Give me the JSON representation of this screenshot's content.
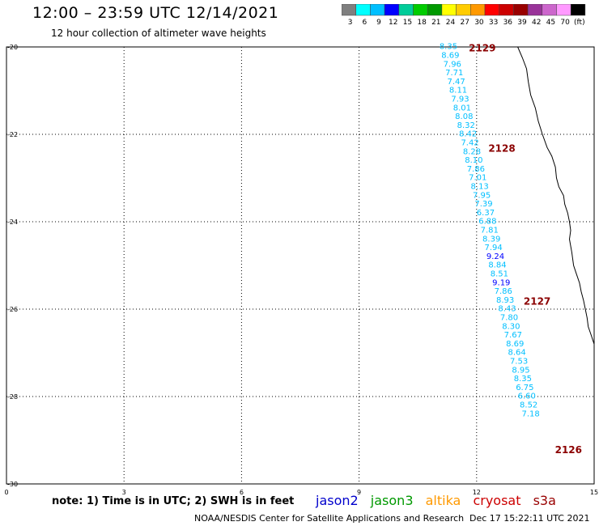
{
  "header": {
    "title": "12:00 – 23:59 UTC 12/14/2021",
    "subtitle": "12 hour collection of altimeter wave heights"
  },
  "colorbar": {
    "colors": [
      "#7f7f7f",
      "#00ffff",
      "#00bfff",
      "#0000ff",
      "#00cc99",
      "#00cc00",
      "#009900",
      "#ffff00",
      "#ffcc00",
      "#ff9900",
      "#ff0000",
      "#cc0000",
      "#990000",
      "#993399",
      "#cc66cc",
      "#ff99ff",
      "#000000"
    ],
    "labels": [
      "3",
      "6",
      "9",
      "12",
      "15",
      "18",
      "21",
      "24",
      "27",
      "30",
      "33",
      "36",
      "39",
      "42",
      "45",
      "70",
      "(ft)"
    ]
  },
  "chart_data": {
    "type": "scatter",
    "x_ticks": [
      "0",
      "3",
      "6",
      "9",
      "12",
      "15"
    ],
    "y_ticks": [
      "-20",
      "-22",
      "-24",
      "-26",
      "-28",
      "-30"
    ],
    "xlim": [
      0,
      15
    ],
    "ylim": [
      -30,
      -20
    ],
    "grid": true,
    "pass_labels": [
      {
        "label": "2129",
        "x": 11.8,
        "y": -20.1
      },
      {
        "label": "2128",
        "x": 12.3,
        "y": -22.4
      },
      {
        "label": "2127",
        "x": 13.2,
        "y": -25.9
      },
      {
        "label": "2126",
        "x": 14.0,
        "y": -29.3
      }
    ],
    "points": [
      {
        "x": 11.05,
        "y": -20.05,
        "v": "8.35",
        "c": "#00bfff"
      },
      {
        "x": 11.1,
        "y": -20.25,
        "v": "8.69",
        "c": "#00bfff"
      },
      {
        "x": 11.15,
        "y": -20.45,
        "v": "7.96",
        "c": "#00bfff"
      },
      {
        "x": 11.2,
        "y": -20.65,
        "v": "7.71",
        "c": "#00bfff"
      },
      {
        "x": 11.25,
        "y": -20.85,
        "v": "7.47",
        "c": "#00bfff"
      },
      {
        "x": 11.3,
        "y": -21.05,
        "v": "8.11",
        "c": "#00bfff"
      },
      {
        "x": 11.35,
        "y": -21.25,
        "v": "7.93",
        "c": "#00bfff"
      },
      {
        "x": 11.4,
        "y": -21.45,
        "v": "8.01",
        "c": "#00bfff"
      },
      {
        "x": 11.45,
        "y": -21.65,
        "v": "8.08",
        "c": "#00bfff"
      },
      {
        "x": 11.5,
        "y": -21.85,
        "v": "8.32",
        "c": "#00bfff"
      },
      {
        "x": 11.55,
        "y": -22.05,
        "v": "8.42",
        "c": "#00bfff"
      },
      {
        "x": 11.6,
        "y": -22.25,
        "v": "7.42",
        "c": "#00bfff"
      },
      {
        "x": 11.65,
        "y": -22.45,
        "v": "8.28",
        "c": "#00bfff"
      },
      {
        "x": 11.7,
        "y": -22.65,
        "v": "8.10",
        "c": "#00bfff"
      },
      {
        "x": 11.75,
        "y": -22.85,
        "v": "7.86",
        "c": "#00bfff"
      },
      {
        "x": 11.8,
        "y": -23.05,
        "v": "7.01",
        "c": "#00bfff"
      },
      {
        "x": 11.85,
        "y": -23.25,
        "v": "8.13",
        "c": "#00bfff"
      },
      {
        "x": 11.9,
        "y": -23.45,
        "v": "7.95",
        "c": "#00bfff"
      },
      {
        "x": 11.95,
        "y": -23.65,
        "v": "7.39",
        "c": "#00bfff"
      },
      {
        "x": 12.0,
        "y": -23.85,
        "v": "6.37",
        "c": "#00bfff"
      },
      {
        "x": 12.05,
        "y": -24.05,
        "v": "6.88",
        "c": "#00bfff"
      },
      {
        "x": 12.1,
        "y": -24.25,
        "v": "7.81",
        "c": "#00bfff"
      },
      {
        "x": 12.15,
        "y": -24.45,
        "v": "8.39",
        "c": "#00bfff"
      },
      {
        "x": 12.2,
        "y": -24.65,
        "v": "7.94",
        "c": "#00bfff"
      },
      {
        "x": 12.25,
        "y": -24.85,
        "v": "9.24",
        "c": "#0000ff"
      },
      {
        "x": 12.3,
        "y": -25.05,
        "v": "8.84",
        "c": "#00bfff"
      },
      {
        "x": 12.35,
        "y": -25.25,
        "v": "8.51",
        "c": "#00bfff"
      },
      {
        "x": 12.4,
        "y": -25.45,
        "v": "9.19",
        "c": "#0000ff"
      },
      {
        "x": 12.45,
        "y": -25.65,
        "v": "7.86",
        "c": "#00bfff"
      },
      {
        "x": 12.5,
        "y": -25.85,
        "v": "8.93",
        "c": "#00bfff"
      },
      {
        "x": 12.55,
        "y": -26.05,
        "v": "8.43",
        "c": "#00bfff"
      },
      {
        "x": 12.6,
        "y": -26.25,
        "v": "7.80",
        "c": "#00bfff"
      },
      {
        "x": 12.65,
        "y": -26.45,
        "v": "8.30",
        "c": "#00bfff"
      },
      {
        "x": 12.7,
        "y": -26.65,
        "v": "7.67",
        "c": "#00bfff"
      },
      {
        "x": 12.75,
        "y": -26.85,
        "v": "8.69",
        "c": "#00bfff"
      },
      {
        "x": 12.8,
        "y": -27.05,
        "v": "8.64",
        "c": "#00bfff"
      },
      {
        "x": 12.85,
        "y": -27.25,
        "v": "7.53",
        "c": "#00bfff"
      },
      {
        "x": 12.9,
        "y": -27.45,
        "v": "8.95",
        "c": "#00bfff"
      },
      {
        "x": 12.95,
        "y": -27.65,
        "v": "8.35",
        "c": "#00bfff"
      },
      {
        "x": 13.0,
        "y": -27.85,
        "v": "6.75",
        "c": "#00bfff"
      },
      {
        "x": 13.05,
        "y": -28.05,
        "v": "6.60",
        "c": "#00bfff"
      },
      {
        "x": 13.1,
        "y": -28.25,
        "v": "8.52",
        "c": "#00bfff"
      },
      {
        "x": 13.15,
        "y": -28.45,
        "v": "7.18",
        "c": "#00bfff"
      }
    ]
  },
  "note": "note: 1) Time is in UTC; 2) SWH is in feet",
  "legend": [
    {
      "name": "jason2",
      "color": "#0000cc"
    },
    {
      "name": "jason3",
      "color": "#009900"
    },
    {
      "name": "altika",
      "color": "#ff9900"
    },
    {
      "name": "cryosat",
      "color": "#cc0000"
    },
    {
      "name": "s3a",
      "color": "#990000"
    }
  ],
  "footer": {
    "credit": "NOAA/NESDIS Center for Satellite Applications and Research",
    "timestamp": "Dec 17 15:22:11 UTC 2021"
  }
}
